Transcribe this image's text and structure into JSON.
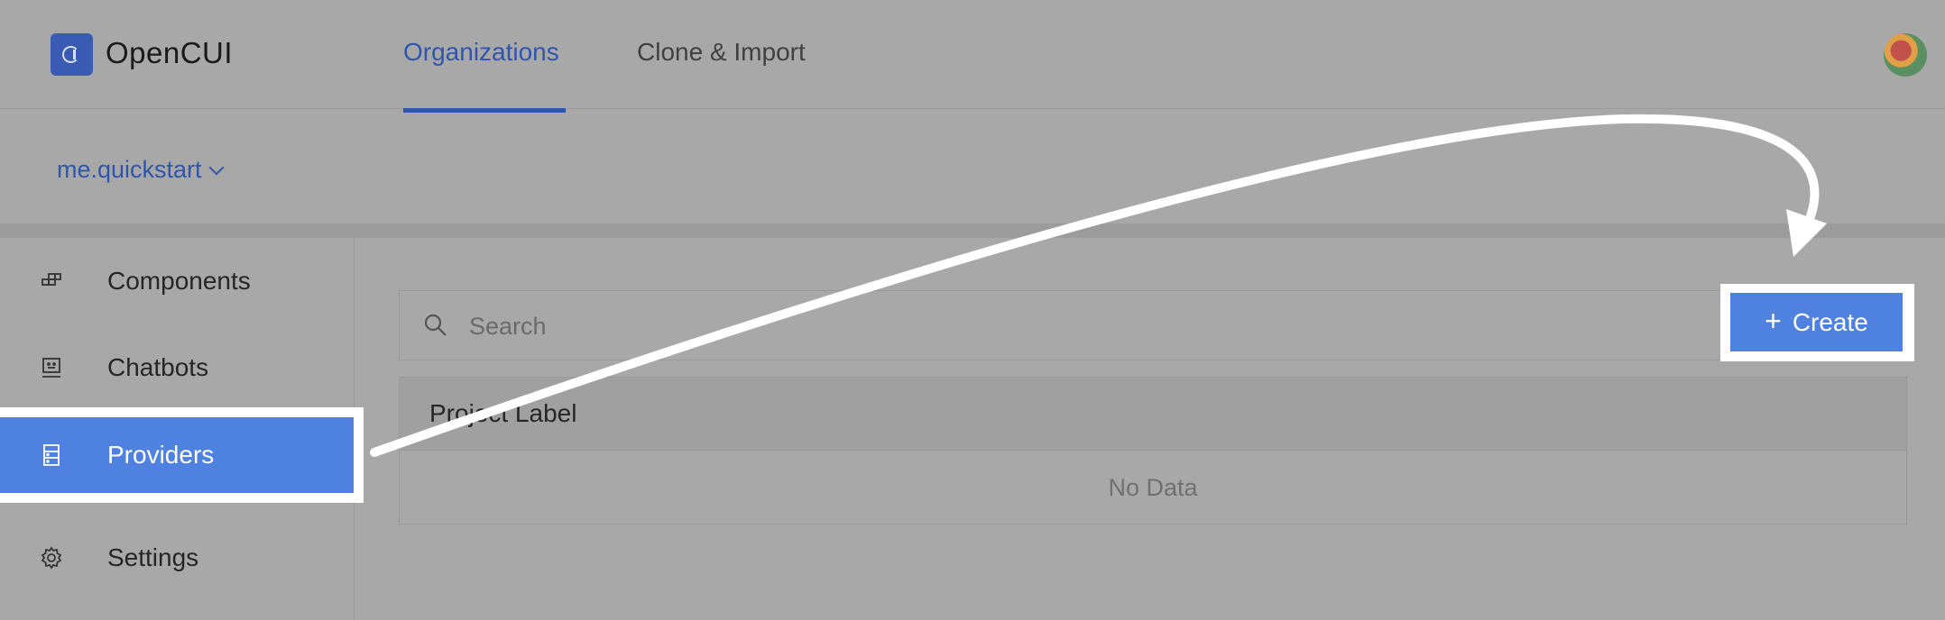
{
  "header": {
    "brand": "OpenCUI",
    "tabs": [
      {
        "label": "Organizations",
        "active": true
      },
      {
        "label": "Clone & Import",
        "active": false
      }
    ],
    "avatar_icon": "user-avatar"
  },
  "org": {
    "selected": "me.quickstart"
  },
  "sidebar": {
    "items": [
      {
        "label": "Components",
        "icon": "components-icon",
        "selected": false
      },
      {
        "label": "Chatbots",
        "icon": "chatbot-icon",
        "selected": false
      },
      {
        "label": "Providers",
        "icon": "providers-icon",
        "selected": true
      },
      {
        "label": "Settings",
        "icon": "gear-icon",
        "selected": false
      }
    ]
  },
  "main": {
    "search": {
      "placeholder": "Search",
      "value": ""
    },
    "create_label": "Create",
    "table": {
      "columns": [
        "Project Label"
      ],
      "empty_text": "No Data"
    }
  },
  "colors": {
    "accent": "#4f81e0",
    "link": "#2f56ac",
    "highlight": "#ffffff"
  }
}
